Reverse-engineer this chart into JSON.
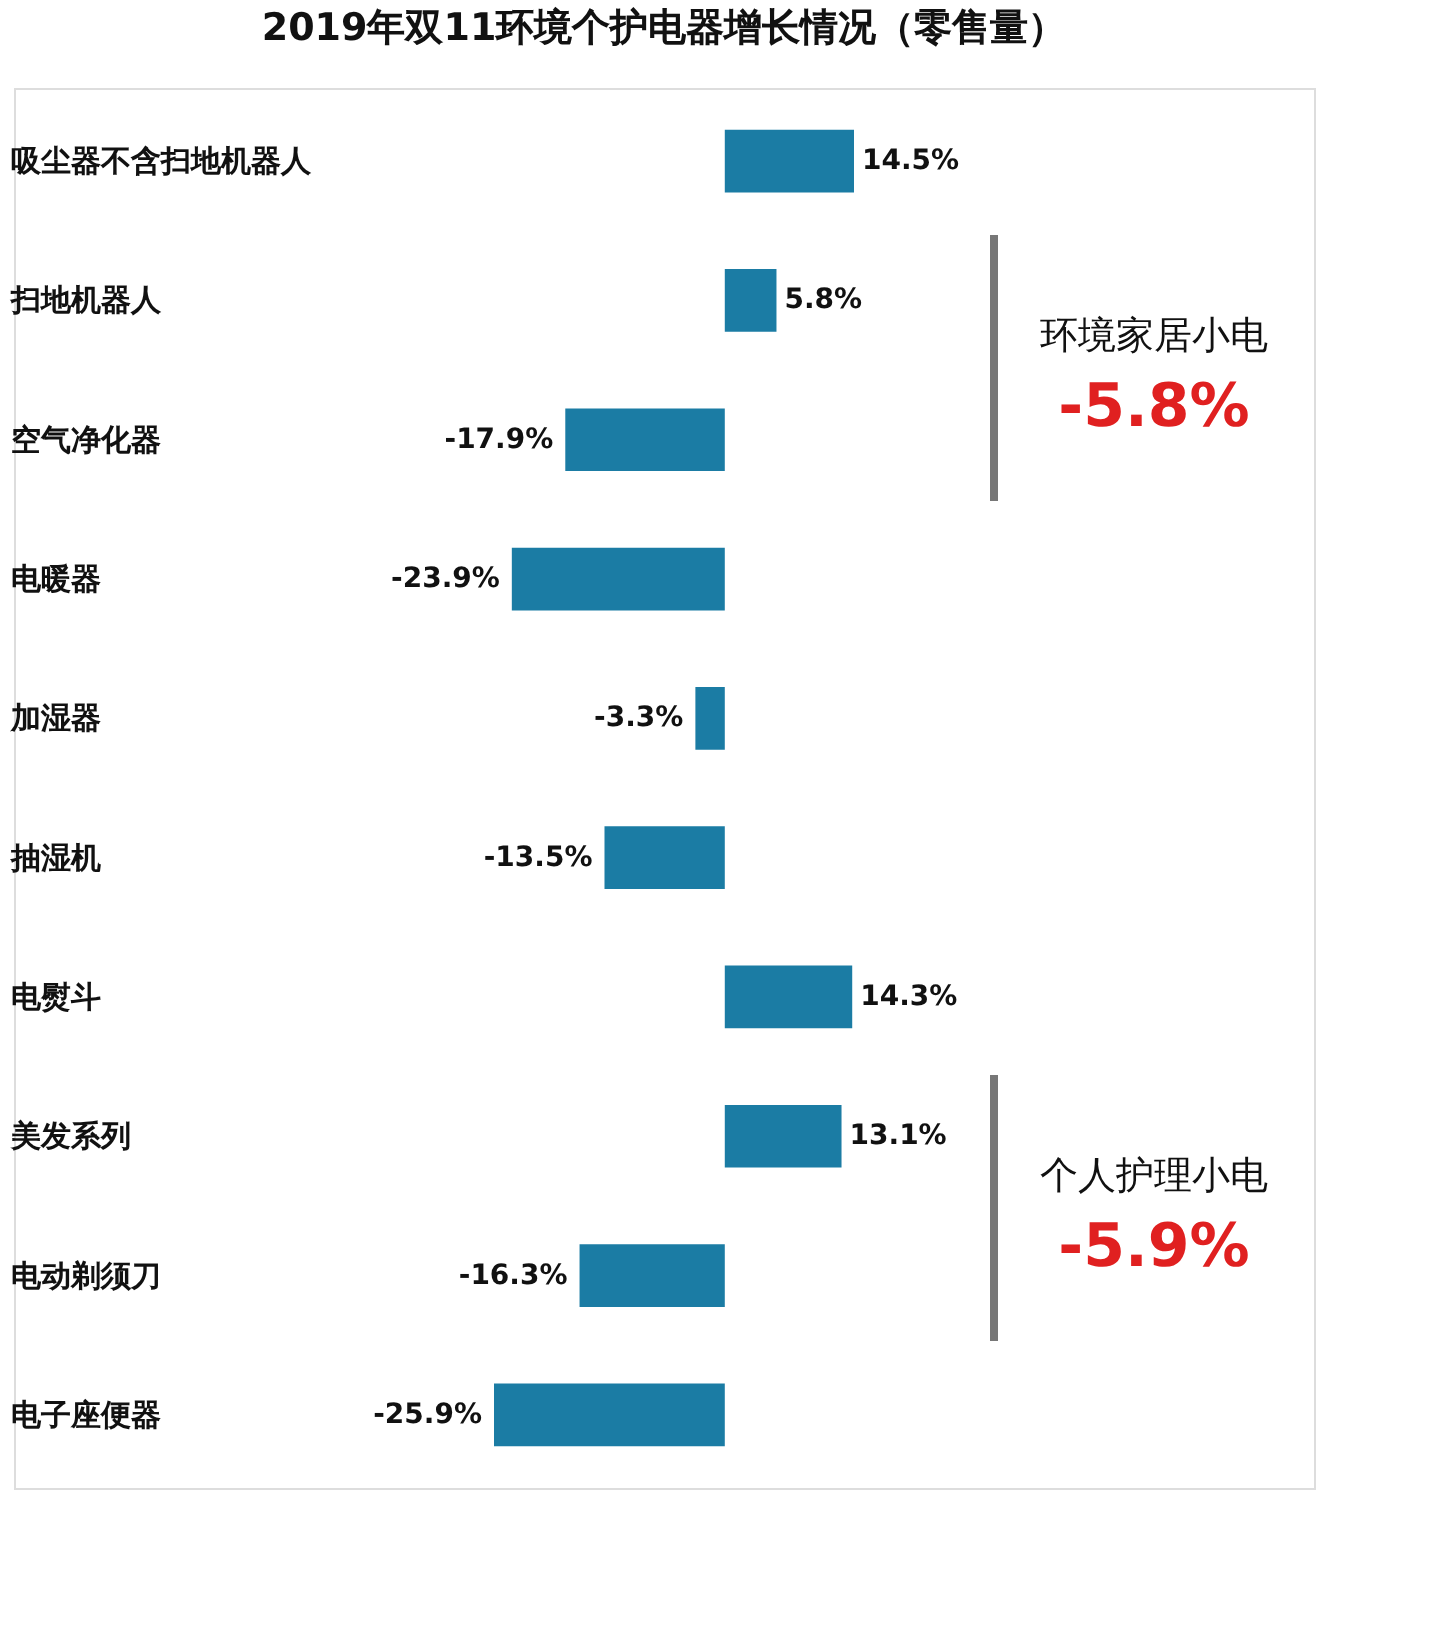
{
  "chart_data": {
    "type": "bar",
    "orientation": "horizontal",
    "title": "2019年双11环境个护电器增长情况（零售量）",
    "categories": [
      "吸尘器不含扫地机器人",
      "扫地机器人",
      "空气净化器",
      "电暖器",
      "加湿器",
      "抽湿机",
      "电熨斗",
      "美发系列",
      "电动剃须刀",
      "电子座便器"
    ],
    "values": [
      14.5,
      5.8,
      -17.9,
      -23.9,
      -3.3,
      -13.5,
      14.3,
      13.1,
      -16.3,
      -25.9
    ],
    "value_labels": [
      "14.5%",
      "5.8%",
      "-17.9%",
      "-23.9%",
      "-3.3%",
      "-13.5%",
      "14.3%",
      "13.1%",
      "-16.3%",
      "-25.9%"
    ],
    "color": "#1b7ca4",
    "annotations": [
      "环境家居小电",
      "-5.8%",
      "个人护理小电",
      "-5.9%"
    ]
  }
}
